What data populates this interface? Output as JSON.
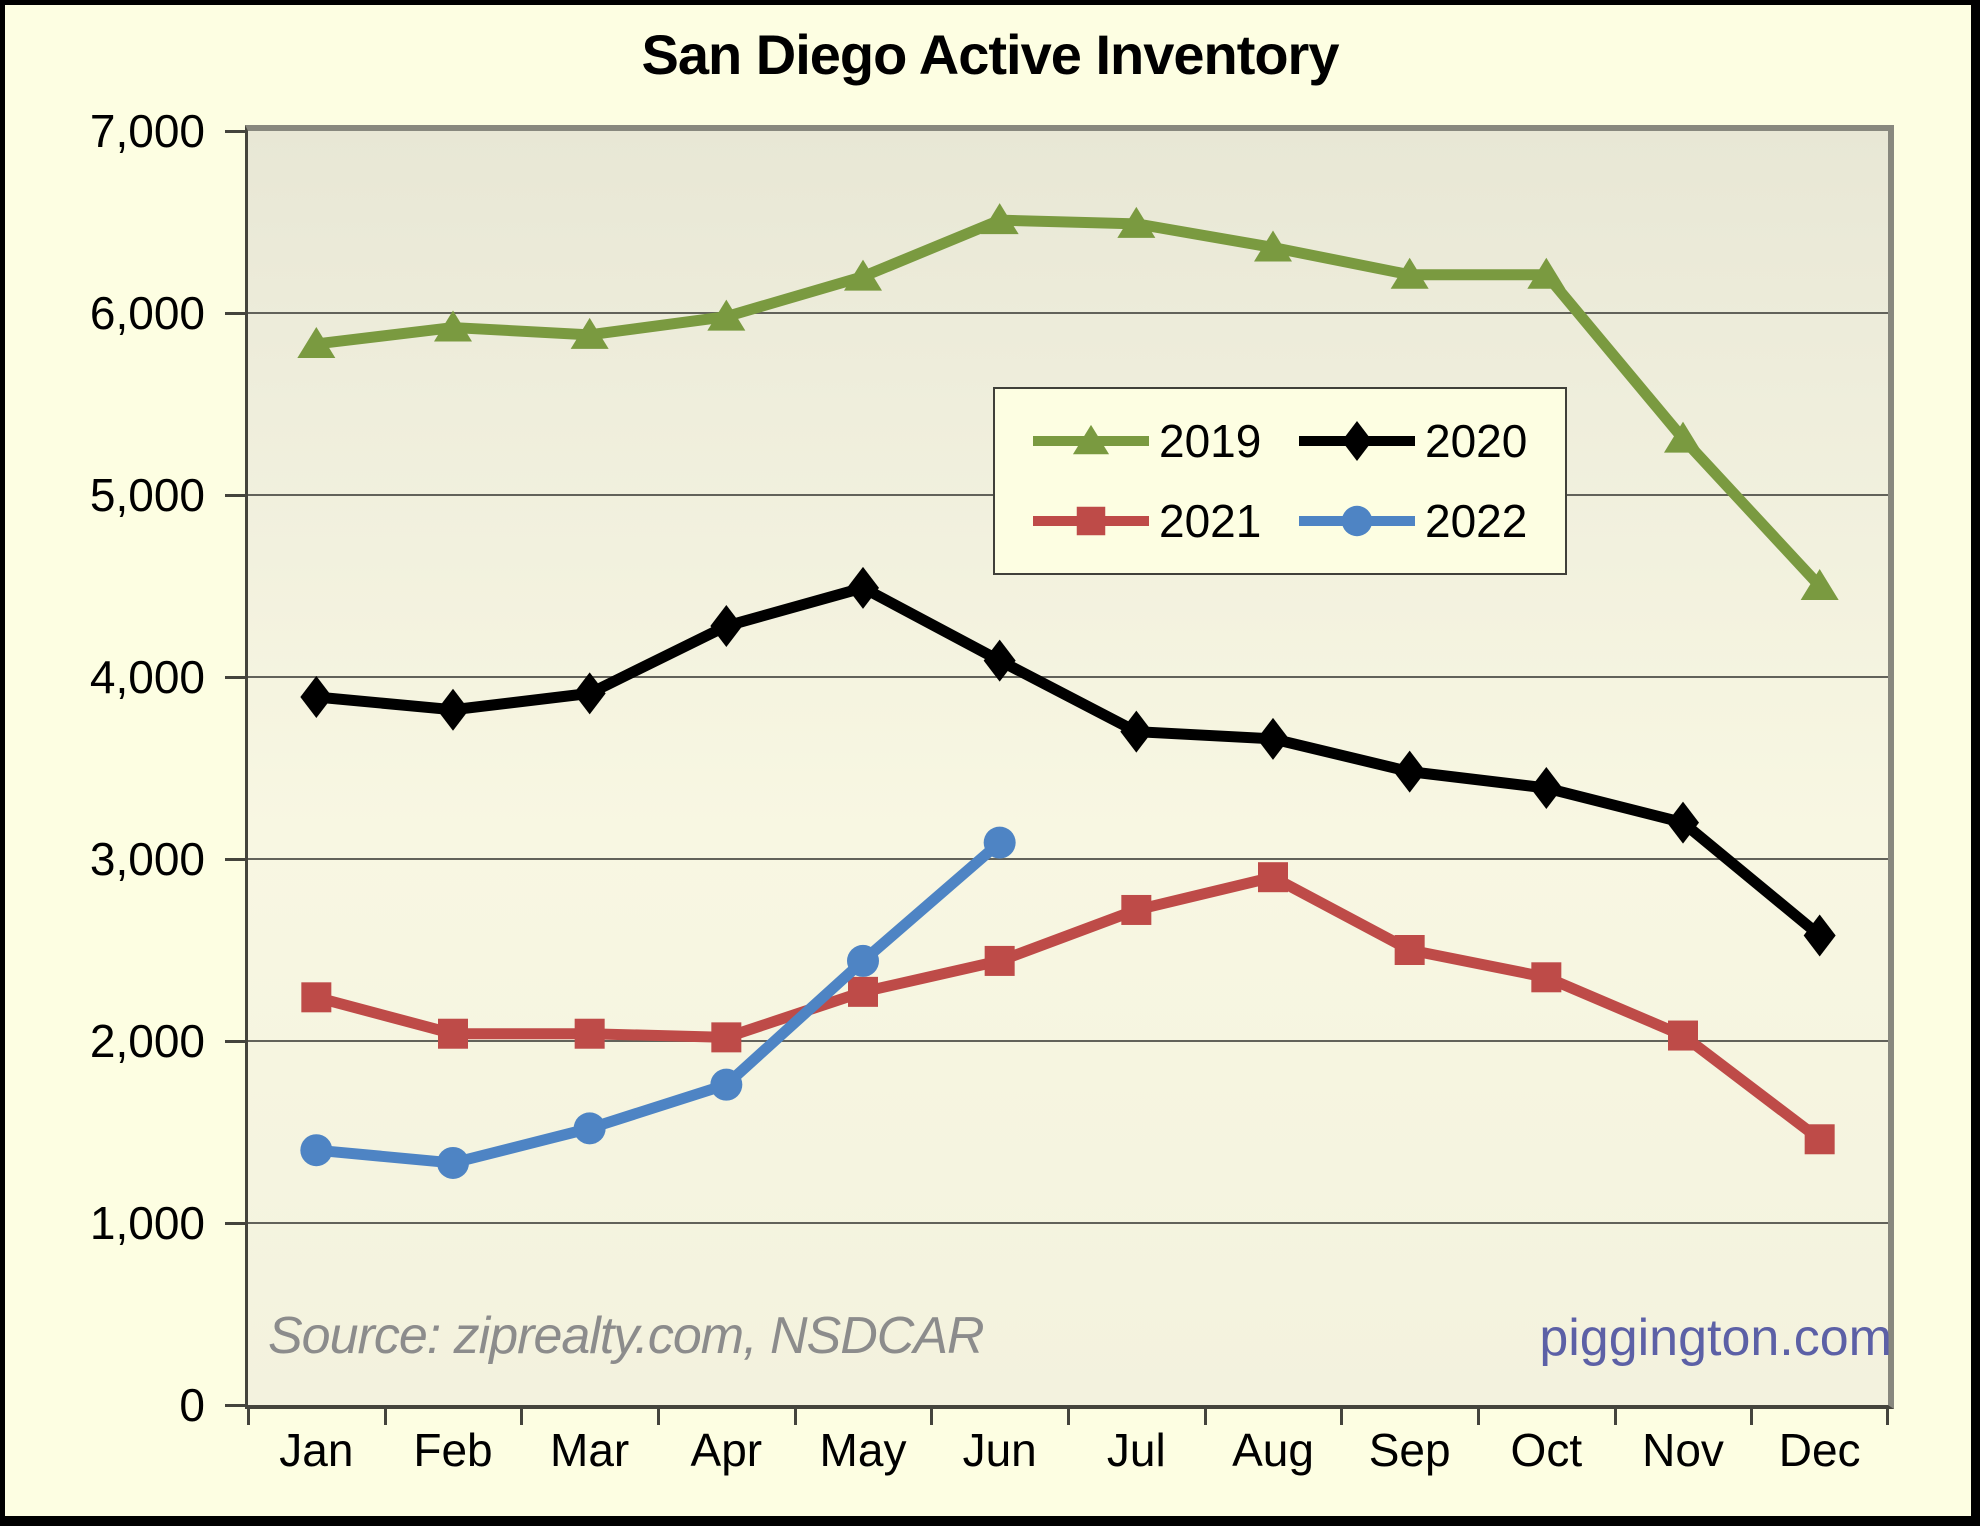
{
  "chart_data": {
    "type": "line",
    "title": "San Diego Active Inventory",
    "categories": [
      "Jan",
      "Feb",
      "Mar",
      "Apr",
      "May",
      "Jun",
      "Jul",
      "Aug",
      "Sep",
      "Oct",
      "Nov",
      "Dec"
    ],
    "series": [
      {
        "name": "2019",
        "color": "#7A9A40",
        "marker": "triangle",
        "values": [
          5830,
          5920,
          5880,
          5980,
          6200,
          6510,
          6490,
          6360,
          6210,
          6210,
          5310,
          4500
        ]
      },
      {
        "name": "2020",
        "color": "#000000",
        "marker": "diamond",
        "values": [
          3890,
          3820,
          3910,
          4280,
          4490,
          4090,
          3700,
          3660,
          3480,
          3390,
          3200,
          2580
        ]
      },
      {
        "name": "2021",
        "color": "#BE4B48",
        "marker": "square",
        "values": [
          2240,
          2040,
          2040,
          2020,
          2270,
          2440,
          2720,
          2900,
          2500,
          2350,
          2030,
          1460
        ]
      },
      {
        "name": "2022",
        "color": "#4E84C4",
        "marker": "circle",
        "values": [
          1400,
          1330,
          1520,
          1760,
          2440,
          3090
        ]
      }
    ],
    "xlabel": "",
    "ylabel": "",
    "ylim": [
      0,
      7000
    ],
    "ytick_step": 1000,
    "ytick_labels": [
      "0",
      "1,000",
      "2,000",
      "3,000",
      "4,000",
      "5,000",
      "6,000",
      "7,000"
    ],
    "grid": true,
    "legend_position": "upper-middle",
    "legend_rows": [
      [
        "2019",
        "2020"
      ],
      [
        "2021",
        "2022"
      ]
    ]
  },
  "annotations": {
    "source_note": "Source: ziprealty.com, NSDCAR",
    "watermark": "piggington.com"
  },
  "colors": {
    "canvas_bg": "#FDFEE2",
    "gridline": "#62625A",
    "axis_dark": "#44443C",
    "axis_gray": "#88887E",
    "source_text": "#8C8C8C",
    "watermark_text": "#5C60A6",
    "outer_border": "#000000"
  }
}
